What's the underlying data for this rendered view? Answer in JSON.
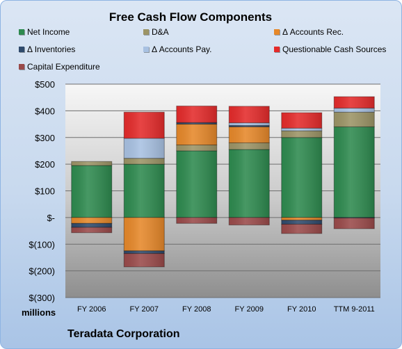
{
  "title": "Free Cash Flow Components",
  "units": "millions",
  "company": "Teradata Corporation",
  "chart_data": {
    "type": "bar",
    "stacked": true,
    "title": "Free Cash Flow Components",
    "ylabel": "millions",
    "categories": [
      "FY 2006",
      "FY 2007",
      "FY 2008",
      "FY 2009",
      "FY 2010",
      "TTM 9-2011"
    ],
    "ylim": [
      -300,
      500
    ],
    "yticks": [
      500,
      400,
      300,
      200,
      100,
      0,
      -100,
      -200,
      -300
    ],
    "ytick_labels": [
      "$500",
      "$400",
      "$300",
      "$200",
      "$100",
      "$-",
      "$(100)",
      "$(200)",
      "$(300)"
    ],
    "grid": true,
    "series": [
      {
        "name": "Net Income",
        "color": "#2e8a4f",
        "values": [
          195,
          200,
          250,
          255,
          300,
          340
        ]
      },
      {
        "name": "D&A",
        "color": "#9c9466",
        "values": [
          15,
          22,
          22,
          25,
          25,
          55
        ]
      },
      {
        "name": "Δ Accounts Rec.",
        "color": "#e6882a",
        "values": [
          -22,
          -125,
          78,
          60,
          -10,
          0
        ]
      },
      {
        "name": "Δ Inventories",
        "color": "#2f4a6c",
        "values": [
          -15,
          -10,
          6,
          5,
          -15,
          -2
        ]
      },
      {
        "name": "Δ Accounts Pay.",
        "color": "#a8c1e2",
        "values": [
          0,
          75,
          0,
          10,
          10,
          15
        ]
      },
      {
        "name": "Questionable Cash Sources",
        "color": "#e42b2b",
        "values": [
          0,
          98,
          62,
          62,
          58,
          43
        ]
      },
      {
        "name": "Capital Expenditure",
        "color": "#9a4a4a",
        "values": [
          -20,
          -50,
          -22,
          -28,
          -35,
          -40
        ]
      }
    ]
  }
}
